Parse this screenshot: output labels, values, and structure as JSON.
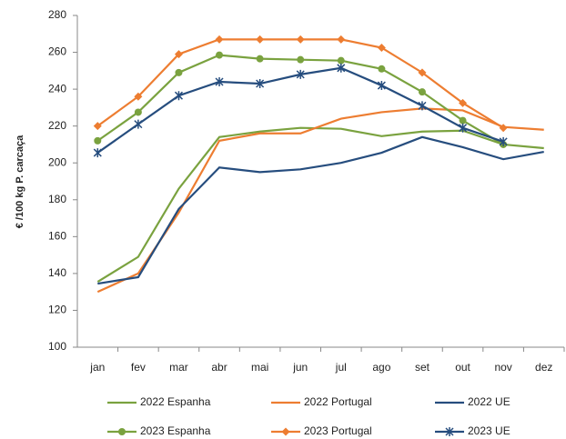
{
  "chart_data": {
    "type": "line",
    "y_label": "€ /100 kg P. carcaça",
    "categories": [
      "jan",
      "fev",
      "mar",
      "abr",
      "mai",
      "jun",
      "jul",
      "ago",
      "set",
      "out",
      "nov",
      "dez"
    ],
    "ylim": [
      100,
      280
    ],
    "yticks": [
      100,
      120,
      140,
      160,
      180,
      200,
      220,
      240,
      260,
      280
    ],
    "grid": false,
    "legend": "bottom",
    "series": [
      {
        "name": "2022 Espanha",
        "color": "#7aa23f",
        "values": [
          135.5,
          149,
          186,
          214,
          217,
          219,
          218.5,
          214.5,
          217,
          217.5,
          210,
          208
        ]
      },
      {
        "name": "2022 Portugal",
        "color": "#ed7d31",
        "values": [
          130,
          140,
          173,
          212,
          216,
          216,
          224,
          227.5,
          229.5,
          228.5,
          219.5,
          218
        ]
      },
      {
        "name": "2022 UE",
        "color": "#264d7e",
        "values": [
          134.5,
          138,
          175,
          197.5,
          195,
          196.5,
          200,
          205.5,
          214,
          208.5,
          202,
          206
        ]
      },
      {
        "name": "2023 Espanha",
        "color": "#7aa23f",
        "marker": "circle",
        "values": [
          212,
          227.5,
          249,
          258.5,
          256.5,
          256,
          255.5,
          251,
          238.5,
          223,
          210,
          null
        ]
      },
      {
        "name": "2023 Portugal",
        "color": "#ed7d31",
        "marker": "diamond",
        "values": [
          220,
          236,
          259,
          267,
          267,
          267,
          267,
          262.5,
          249,
          232.5,
          219,
          null
        ]
      },
      {
        "name": "2023 UE",
        "color": "#264d7e",
        "marker": "star",
        "values": [
          205.5,
          221,
          236.5,
          244,
          243,
          248,
          251.5,
          242,
          231,
          219,
          211.5,
          null
        ]
      }
    ]
  }
}
